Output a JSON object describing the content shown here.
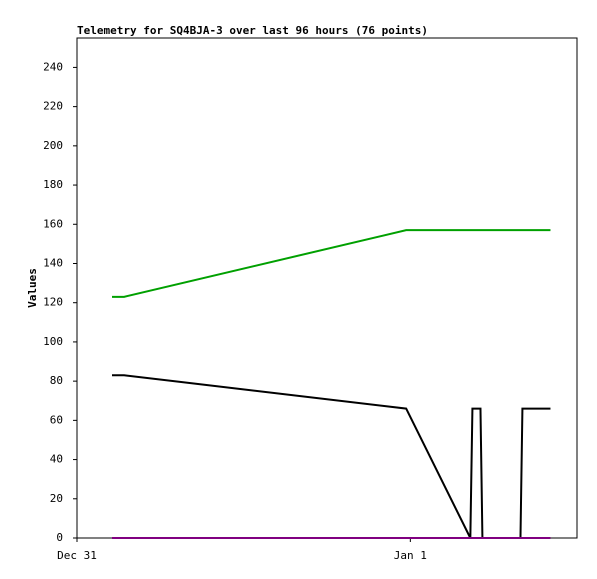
{
  "chart_data": {
    "type": "line",
    "title": "Telemetry for SQ4BJA-3 over last 96 hours (76 points)",
    "y_label": "Values",
    "xlim": [
      0,
      36
    ],
    "xticks": [
      {
        "value": 0,
        "label": "Dec 31"
      },
      {
        "value": 24,
        "label": "Jan 1"
      }
    ],
    "ylim": [
      0,
      255
    ],
    "yticks": [
      0,
      20,
      40,
      60,
      80,
      100,
      120,
      140,
      160,
      180,
      200,
      220,
      240
    ],
    "series": [
      {
        "color": "#00a000",
        "x": [
          2.52,
          3.39,
          23.7,
          34.09
        ],
        "values": [
          123,
          123,
          157,
          157
        ]
      },
      {
        "color": "#000000",
        "x": [
          2.52,
          3.39,
          23.7,
          28.32,
          28.47,
          29.05,
          29.19,
          31.93,
          32.07,
          34.09
        ],
        "values": [
          83,
          83,
          66,
          0,
          66,
          66,
          0,
          0,
          66,
          66
        ]
      },
      {
        "color": "#800080",
        "x": [
          2.52,
          34.09
        ],
        "values": [
          0,
          0
        ]
      }
    ]
  }
}
